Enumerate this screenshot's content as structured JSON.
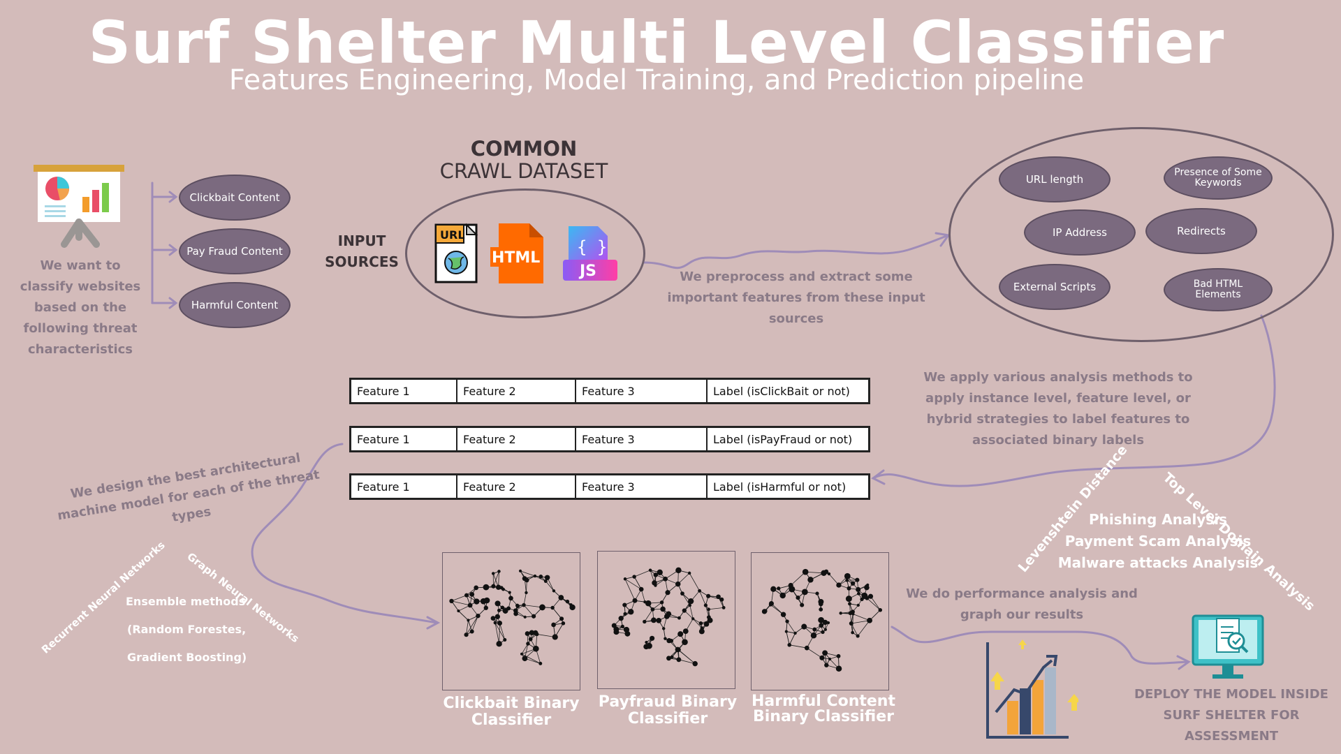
{
  "header": {
    "title": "Surf Shelter Multi Level Classifier",
    "subtitle": "Features Engineering, Model Training, and Prediction pipeline"
  },
  "intro": {
    "text": "We want to classify websites based on the following threat characteristics",
    "threats": [
      "Clickbait Content",
      "Pay Fraud Content",
      "Harmful Content"
    ]
  },
  "dataset": {
    "title_line1": "COMMON",
    "title_line2": "CRAWL DATASET",
    "input_label": "INPUT SOURCES",
    "icons": {
      "url": "URL",
      "html": "HTML",
      "js": "JS"
    }
  },
  "preprocess_text": "We preprocess and extract some important features from these input sources",
  "features": {
    "url_length": "URL length",
    "keywords": "Presence of Some Keywords",
    "ip": "IP Address",
    "redirects": "Redirects",
    "scripts": "External Scripts",
    "bad_html": "Bad HTML Elements"
  },
  "analysis_text": "We apply various analysis methods to apply instance level, feature level, or hybrid strategies to label features to associated binary labels",
  "tables": [
    {
      "f1": "Feature 1",
      "f2": "Feature 2",
      "f3": "Feature 3",
      "label": "Label  (isClickBait or not)"
    },
    {
      "f1": "Feature 1",
      "f2": "Feature 2",
      "f3": "Feature 3",
      "label": "Label  (isPayFraud or not)"
    },
    {
      "f1": "Feature 1",
      "f2": "Feature 2",
      "f3": "Feature 3",
      "label": "Label  (isHarmful or not)"
    }
  ],
  "design_text": "We design the best architectural machine model for each of the threat types",
  "models": {
    "rnn": "Recurrent Neural Networks",
    "gnn": "Graph Neural Networks",
    "ensemble_line1": "Ensemble methods",
    "ensemble_line2": "(Random Forestes,",
    "ensemble_line3": "Gradient Boosting)"
  },
  "analysis_methods": {
    "levenshtein": "Levenshtein Distance",
    "tld": "Top Level Domain Analysis",
    "phishing": "Phishing Analysis",
    "payment": "Payment Scam Analysis",
    "malware": "Malware attacks Analysis"
  },
  "classifiers": [
    {
      "line1": "Clickbait Binary",
      "line2": "Classifier"
    },
    {
      "line1": "Payfraud Binary",
      "line2": "Classifier"
    },
    {
      "line1": "Harmful Content",
      "line2": "Binary Classifier"
    }
  ],
  "performance_text": "We do performance analysis and graph our results",
  "deploy_text": "DEPLOY THE MODEL INSIDE SURF SHELTER FOR ASSESSMENT",
  "colors": {
    "background": "#d3bbba",
    "pill": "#7b6a7f",
    "annotation": "#8a7a87",
    "connector": "#9f8cb8"
  }
}
